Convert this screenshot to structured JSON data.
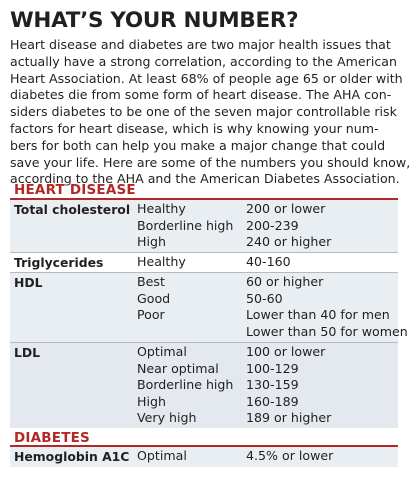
{
  "title": "WHAT’S YOUR NUMBER?",
  "intro_lines": [
    "Heart disease and diabetes are two major health issues that",
    "actually have a strong correlation, according to the American",
    "Heart Association. At least 68% of people age 65 or older with",
    "diabetes die from some form of heart disease. The AHA con-",
    "siders diabetes to be one of the seven major controllable risk",
    "factors for heart disease, which is why knowing your num-",
    "bers for both can help you make a major change that could",
    "save your life. Here are some of the numbers you should know,",
    "according to the AHA and the American Diabetes Association."
  ],
  "heart_disease": {
    "heading": "HEART DISEASE",
    "rows": [
      {
        "test": "Total cholesterol",
        "levels": [
          "Healthy",
          "Borderline high",
          "High"
        ],
        "values": [
          "200 or lower",
          "200-239",
          "240 or higher"
        ]
      },
      {
        "test": "Triglycerides",
        "levels": [
          "Healthy"
        ],
        "values": [
          "40-160"
        ]
      },
      {
        "test": "HDL",
        "levels": [
          "Best",
          "Good",
          "Poor"
        ],
        "values": [
          "60 or higher",
          "50-60",
          "Lower than 40 for men",
          "Lower than 50 for women"
        ]
      },
      {
        "test": "LDL",
        "levels": [
          "Optimal",
          "Near optimal",
          "Borderline high",
          "High",
          "Very high"
        ],
        "values": [
          "100 or lower",
          "100-129",
          "130-159",
          "160-189",
          "189 or higher"
        ]
      }
    ]
  },
  "diabetes": {
    "heading": "DIABETES",
    "rows": [
      {
        "test": "Hemoglobin A1C",
        "levels": [
          "Optimal"
        ],
        "values": [
          "4.5% or lower"
        ]
      }
    ]
  },
  "colors": {
    "accent": "#b32826",
    "shade": "#e8eef2",
    "text": "#231f20"
  }
}
